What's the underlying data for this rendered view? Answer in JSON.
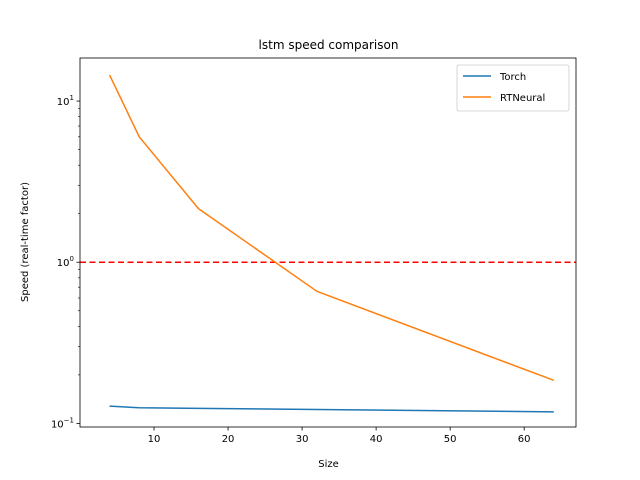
{
  "chart_data": {
    "type": "line",
    "title": "lstm speed comparison",
    "xlabel": "Size",
    "ylabel": "Speed (real-time factor)",
    "x": [
      4,
      8,
      16,
      32,
      64
    ],
    "xlim": [
      0,
      67.0
    ],
    "ylim": [
      0.095,
      18.5
    ],
    "yscale": "log",
    "xticks": [
      10,
      20,
      30,
      40,
      50,
      60
    ],
    "yticks": [
      {
        "value": 0.1,
        "base": "10",
        "exp": "−1"
      },
      {
        "value": 1,
        "base": "10",
        "exp": "0"
      },
      {
        "value": 10,
        "base": "10",
        "exp": "1"
      }
    ],
    "series": [
      {
        "name": "Torch",
        "color": "#1f77b4",
        "values": [
          0.128,
          0.125,
          0.124,
          0.122,
          0.118
        ]
      },
      {
        "name": "RTNeural",
        "color": "#ff7f0e",
        "values": [
          14.5,
          6.0,
          2.15,
          0.66,
          0.185
        ]
      }
    ],
    "reference_line": {
      "y": 1.0,
      "color": "#ff0000",
      "style": "dashed"
    },
    "legend": {
      "position": "top-right"
    },
    "grid": false
  }
}
